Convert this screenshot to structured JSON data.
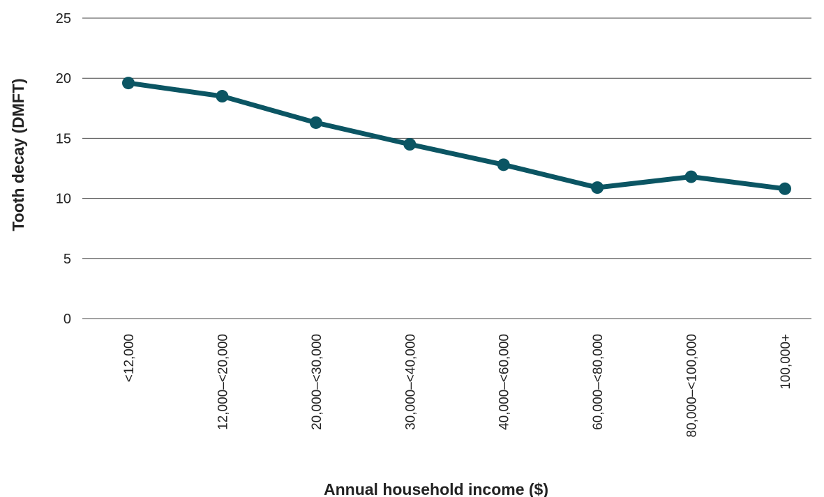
{
  "chart_data": {
    "type": "line",
    "title": "",
    "xlabel": "Annual household income ($)",
    "ylabel": "Tooth decay (DMFT)",
    "categories": [
      "<12,000",
      "12,000–<20,000",
      "20,000–<30,000",
      "30,000–<40,000",
      "40,000–<60,000",
      "60,000–<80,000",
      "80,000–<100,000",
      "100,000+"
    ],
    "series": [
      {
        "values": [
          19.6,
          18.5,
          16.3,
          14.5,
          12.8,
          10.9,
          11.8,
          10.8
        ]
      }
    ],
    "ylim": [
      0,
      25
    ],
    "yticks": [
      0,
      5,
      10,
      15,
      20,
      25
    ],
    "grid": true,
    "legend": "none",
    "colors": {
      "line": "#0b5563",
      "grid": "#444444"
    }
  }
}
